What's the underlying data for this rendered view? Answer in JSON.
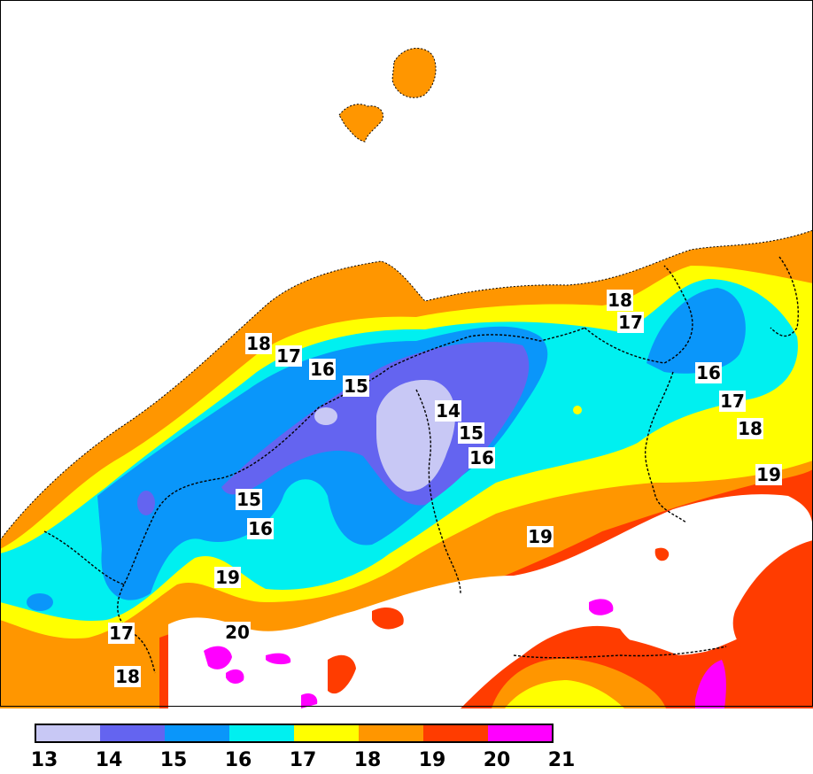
{
  "legend": {
    "ticks": [
      "13",
      "14",
      "15",
      "16",
      "17",
      "18",
      "19",
      "20",
      "21"
    ],
    "colors": [
      "#c8c8f5",
      "#6464f0",
      "#0a96fa",
      "#00f0f0",
      "#ffff00",
      "#ff9600",
      "#ff3c00",
      "#ff00ff"
    ]
  },
  "contour_labels": [
    {
      "text": "18"
    },
    {
      "text": "17"
    },
    {
      "text": "16"
    },
    {
      "text": "15"
    },
    {
      "text": "14"
    },
    {
      "text": "15"
    },
    {
      "text": "16"
    },
    {
      "text": "18"
    },
    {
      "text": "17"
    },
    {
      "text": "16"
    },
    {
      "text": "17"
    },
    {
      "text": "18"
    },
    {
      "text": "19"
    },
    {
      "text": "15"
    },
    {
      "text": "16"
    },
    {
      "text": "19"
    },
    {
      "text": "19"
    },
    {
      "text": "17"
    },
    {
      "text": "20"
    },
    {
      "text": "18"
    }
  ],
  "colors": {
    "sea": "#ffffff",
    "band_13": "#c8c8f5",
    "band_14": "#6464f0",
    "band_15": "#0a96fa",
    "band_16": "#00f0f0",
    "band_17": "#ffff00",
    "band_18": "#ff9600",
    "band_19": "#ff3c00",
    "band_20": "#ff00ff"
  }
}
